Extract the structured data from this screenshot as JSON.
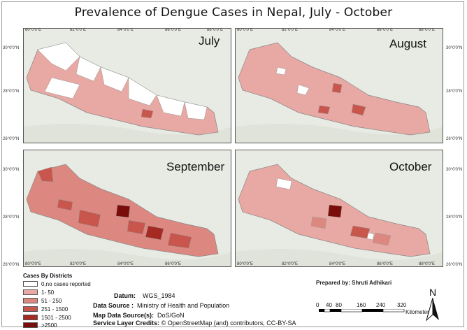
{
  "title": "Prevalence of Dengue Cases in Nepal, July - October",
  "panels": [
    {
      "label": "July",
      "top_ticks": [
        "80°0'0\"E",
        "82°0'0\"E",
        "84°0'0\"E",
        "86°0'0\"E",
        "88°0'0\"E"
      ],
      "side_ticks": [
        "30°0'0\"N",
        "28°0'0\"N",
        "26°0'0\"N"
      ]
    },
    {
      "label": "August",
      "top_ticks": [
        "80°0'0\"E",
        "82°0'0\"E",
        "84°0'0\"E",
        "86°0'0\"E",
        "88°0'0\"E"
      ],
      "side_ticks": [
        "30°0'0\"N",
        "28°0'0\"N",
        "26°0'0\"N"
      ]
    },
    {
      "label": "September",
      "bottom_ticks": [
        "80°0'0\"E",
        "82°0'0\"E",
        "84°0'0\"E",
        "86°0'0\"E"
      ],
      "side_ticks": [
        "30°0'0\"N",
        "28°0'0\"N",
        "26°0'0\"N"
      ]
    },
    {
      "label": "October",
      "bottom_ticks": [
        "80°0'0\"E",
        "82°0'0\"E",
        "84°0'0\"E",
        "86°0'0\"E",
        "88°0'0\"E"
      ],
      "side_ticks": [
        "30°0'0\"N",
        "28°0'0\"N",
        "26°0'0\"N"
      ]
    }
  ],
  "legend": {
    "title": "Cases By Districts",
    "classes": [
      {
        "label": "0,no cases reported",
        "color": "#ffffff"
      },
      {
        "label": "1- 50",
        "color": "#e8a8a3"
      },
      {
        "label": "51 - 250",
        "color": "#dc8880"
      },
      {
        "label": "251 - 1500",
        "color": "#c8564d"
      },
      {
        "label": "1501 - 2500",
        "color": "#a52a22"
      },
      {
        "label": ">2500",
        "color": "#7a0c0c"
      }
    ]
  },
  "info": {
    "datum_key": "Datum:",
    "datum_val": "WGS_1984",
    "source_key": "Data Source :",
    "source_val": "Ministry of Health and Population",
    "map_source_key": "Map Data Source(s):",
    "map_source_val": "DoS/GoN",
    "credits_key": "Service Layer Credits:",
    "credits_val": "© OpenStreetMap (and) contributors, CC-BY-SA"
  },
  "prepared_by": "Prepared by: Shruti Adhikari",
  "scale": {
    "labels": [
      "0",
      "40",
      "80",
      "160",
      "240",
      "320"
    ],
    "unit": "Kilometers"
  },
  "north": "N"
}
